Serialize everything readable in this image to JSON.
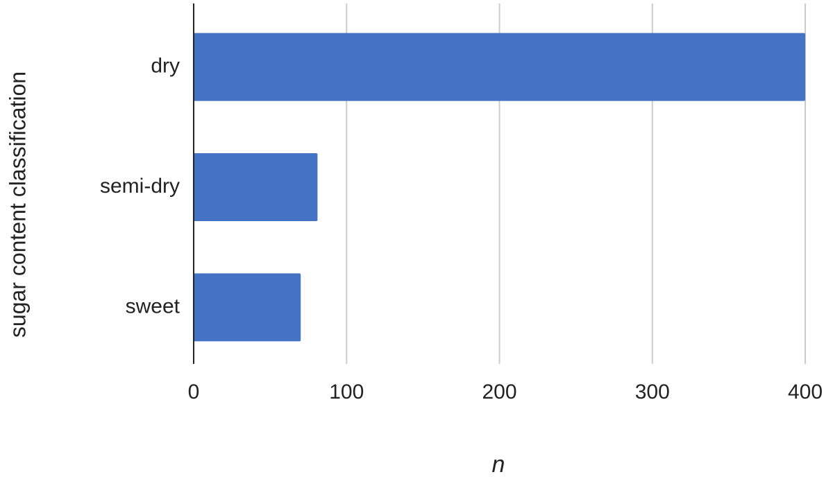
{
  "chart_data": {
    "type": "bar",
    "orientation": "horizontal",
    "x_label": "n",
    "y_label": "sugar content classification",
    "categories": [
      "dry",
      "semi-dry",
      "sweet"
    ],
    "values": [
      400,
      81,
      70
    ],
    "color": "#4472c4",
    "xlim": [
      0,
      400
    ],
    "xticks": [
      0,
      100,
      200,
      300,
      400
    ],
    "grid": true
  }
}
